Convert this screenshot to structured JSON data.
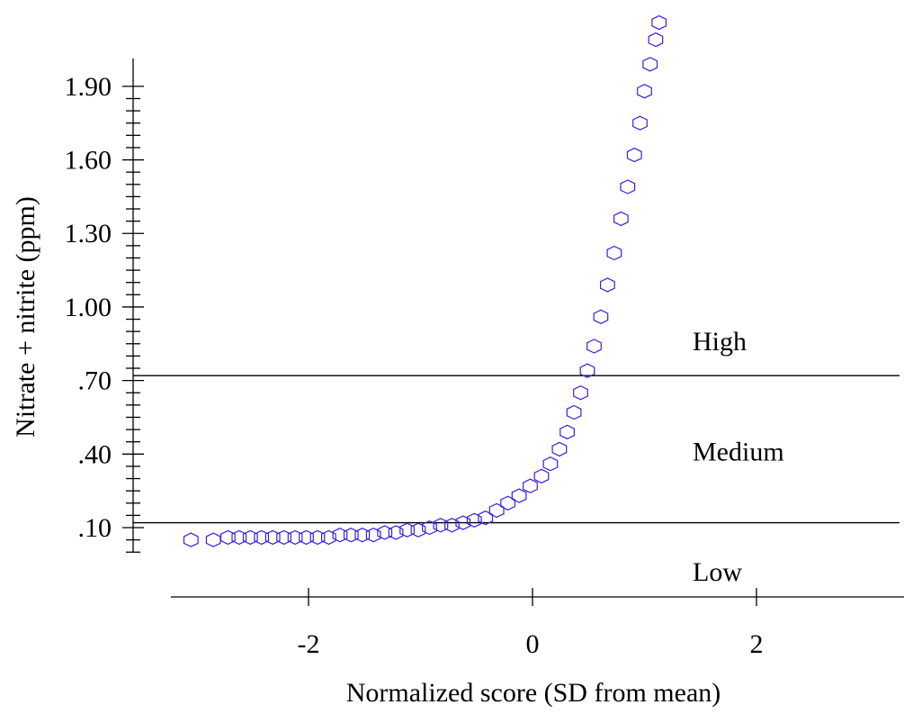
{
  "chart_data": {
    "type": "scatter",
    "title": "",
    "xlabel": "Normalized score (SD from mean)",
    "ylabel": "Nitrate + nitrite (ppm)",
    "xlim": [
      -3.1,
      3.3
    ],
    "ylim": [
      0.0,
      2.05
    ],
    "x_ticks": [
      {
        "value": -2,
        "label": "-2"
      },
      {
        "value": 0,
        "label": "0"
      },
      {
        "value": 2,
        "label": "2"
      }
    ],
    "y_ticks": [
      {
        "value": 0.1,
        "label": ".10"
      },
      {
        "value": 0.4,
        "label": ".40"
      },
      {
        "value": 0.7,
        "label": ".70"
      },
      {
        "value": 1.0,
        "label": "1.00"
      },
      {
        "value": 1.3,
        "label": "1.30"
      },
      {
        "value": 1.6,
        "label": "1.60"
      },
      {
        "value": 1.9,
        "label": "1.90"
      }
    ],
    "reference_lines": [
      {
        "y": 0.72
      },
      {
        "y": 0.12
      }
    ],
    "zones": [
      {
        "label": "High",
        "y": 0.86
      },
      {
        "label": "Medium",
        "y": 0.41
      },
      {
        "label": "Low",
        "y": -0.08
      }
    ],
    "series": [
      {
        "marker": "hexagon",
        "color": "#3a1fe0",
        "points": [
          [
            -3.05,
            0.05
          ],
          [
            -2.85,
            0.05
          ],
          [
            -2.72,
            0.06
          ],
          [
            -2.62,
            0.06
          ],
          [
            -2.52,
            0.06
          ],
          [
            -2.42,
            0.06
          ],
          [
            -2.32,
            0.06
          ],
          [
            -2.22,
            0.06
          ],
          [
            -2.12,
            0.06
          ],
          [
            -2.02,
            0.06
          ],
          [
            -1.92,
            0.06
          ],
          [
            -1.82,
            0.06
          ],
          [
            -1.72,
            0.07
          ],
          [
            -1.62,
            0.07
          ],
          [
            -1.52,
            0.07
          ],
          [
            -1.42,
            0.07
          ],
          [
            -1.32,
            0.08
          ],
          [
            -1.22,
            0.08
          ],
          [
            -1.12,
            0.09
          ],
          [
            -1.02,
            0.09
          ],
          [
            -0.92,
            0.1
          ],
          [
            -0.82,
            0.11
          ],
          [
            -0.72,
            0.11
          ],
          [
            -0.62,
            0.12
          ],
          [
            -0.52,
            0.13
          ],
          [
            -0.42,
            0.14
          ],
          [
            -0.32,
            0.17
          ],
          [
            -0.22,
            0.2
          ],
          [
            -0.12,
            0.23
          ],
          [
            -0.02,
            0.27
          ],
          [
            0.08,
            0.31
          ],
          [
            0.16,
            0.36
          ],
          [
            0.24,
            0.42
          ],
          [
            0.31,
            0.49
          ],
          [
            0.37,
            0.57
          ],
          [
            0.43,
            0.65
          ],
          [
            0.49,
            0.74
          ],
          [
            0.55,
            0.84
          ],
          [
            0.61,
            0.96
          ],
          [
            0.67,
            1.09
          ],
          [
            0.73,
            1.22
          ],
          [
            0.79,
            1.36
          ],
          [
            0.85,
            1.49
          ],
          [
            0.91,
            1.62
          ],
          [
            0.96,
            1.75
          ],
          [
            1.0,
            1.88
          ],
          [
            1.05,
            1.99
          ],
          [
            1.1,
            2.09
          ],
          [
            1.13,
            2.16
          ]
        ]
      }
    ]
  }
}
